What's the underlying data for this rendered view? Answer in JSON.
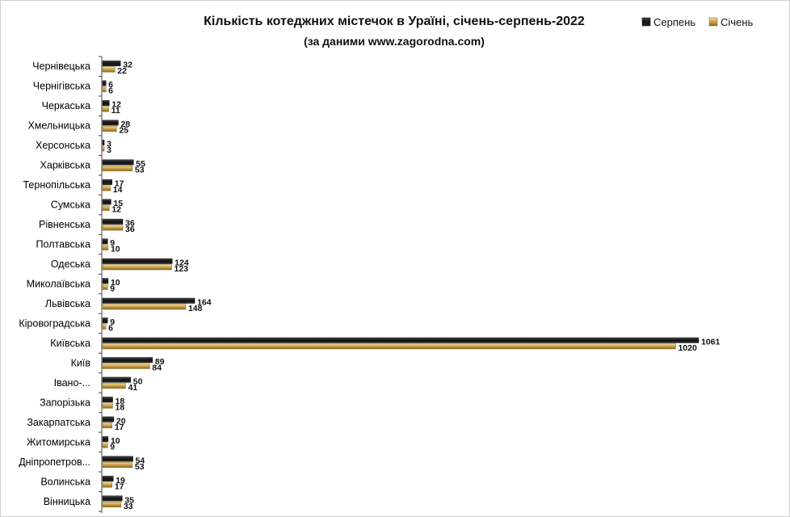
{
  "chart_data": {
    "type": "bar",
    "orientation": "horizontal",
    "title": "Кількість котеджних містечок в Ураїні, січень-серпень-2022",
    "subtitle": "(за даними www.zagorodna.com)",
    "categories": [
      "Чернівецька",
      "Чернігівська",
      "Черкаська",
      "Хмельницька",
      "Херсонська",
      "Харківська",
      "Тернопільська",
      "Сумська",
      "Рівненська",
      "Полтавська",
      "Одеська",
      "Миколаївська",
      "Львівська",
      "Кіровоградська",
      "Київська",
      "Київ",
      "Івано-...",
      "Запорізька",
      "Закарпатська",
      "Житомирська",
      "Дніпропетров...",
      "Волинська",
      "Вінницька"
    ],
    "series": [
      {
        "name": "Серпень",
        "color": "#1a1a1a",
        "values": [
          32,
          6,
          12,
          28,
          3,
          55,
          17,
          15,
          36,
          9,
          124,
          10,
          164,
          9,
          1061,
          89,
          50,
          18,
          20,
          10,
          54,
          19,
          35
        ]
      },
      {
        "name": "Січень",
        "color": "#c9a24a",
        "values": [
          22,
          6,
          11,
          25,
          3,
          53,
          14,
          12,
          36,
          10,
          123,
          9,
          148,
          6,
          1020,
          84,
          41,
          18,
          17,
          9,
          53,
          17,
          33
        ]
      }
    ],
    "legend_position": "top-right",
    "grid": false
  }
}
